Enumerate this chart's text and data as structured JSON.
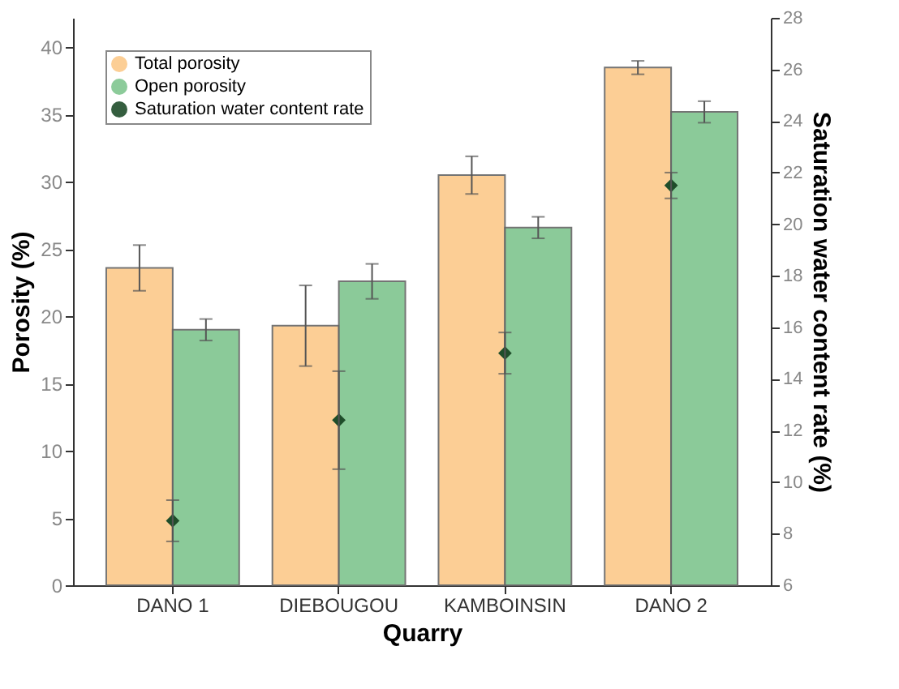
{
  "chart_data": {
    "type": "bar",
    "xlabel": "Quarry",
    "ylabel": "Porosity (%)",
    "y2label": "Saturation water content rate (%)",
    "categories": [
      "DANO 1",
      "DIEBOUGOU",
      "KAMBOINSIN",
      "DANO 2"
    ],
    "series": [
      {
        "name": "Total porosity",
        "color": "#fcc98a",
        "values": [
          23.6,
          19.3,
          30.5,
          38.5
        ],
        "errors": [
          1.7,
          3.0,
          1.4,
          0.5
        ]
      },
      {
        "name": "Open porosity",
        "color": "#7fc58f",
        "values": [
          19.0,
          22.6,
          26.6,
          35.2
        ],
        "errors": [
          0.8,
          1.3,
          0.8,
          0.8
        ]
      },
      {
        "name": "Saturation water content rate",
        "type": "scatter",
        "axis": "y2",
        "color": "#1f4d2a",
        "marker": "diamond",
        "values": [
          8.5,
          12.4,
          15.0,
          21.5
        ],
        "errors": [
          0.8,
          1.9,
          0.8,
          0.5
        ]
      }
    ],
    "ylim": [
      0,
      42.2
    ],
    "yticks": [
      0,
      5,
      10,
      15,
      20,
      25,
      30,
      35,
      40
    ],
    "y2lim": [
      6,
      28
    ],
    "y2ticks": [
      6,
      8,
      10,
      12,
      14,
      16,
      18,
      20,
      22,
      24,
      26,
      28
    ],
    "grid": false,
    "legend": "top left"
  }
}
